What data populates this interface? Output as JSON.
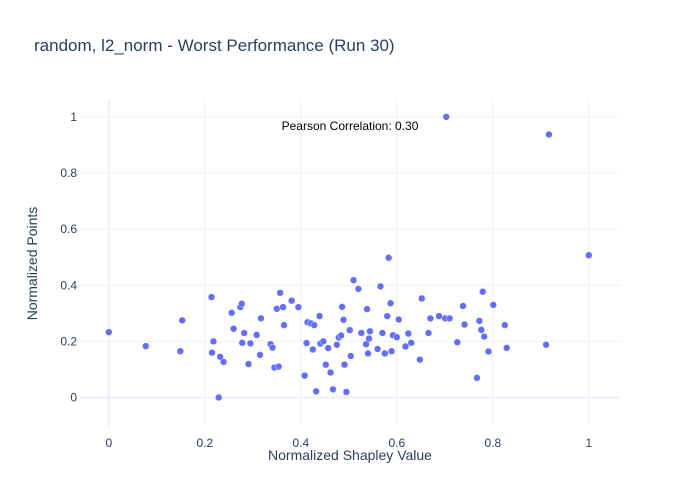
{
  "chart_data": {
    "type": "scatter",
    "title": "random, l2_norm - Worst Performance (Run 30)",
    "xlabel": "Normalized Shapley Value",
    "ylabel": "Normalized Points",
    "annotation": "Pearson Correlation: 0.30",
    "xlim": [
      -0.06,
      1.065
    ],
    "ylim": [
      -0.105,
      1.06
    ],
    "xticks": [
      0,
      0.2,
      0.4,
      0.6,
      0.8,
      1
    ],
    "xtick_labels": [
      "0",
      "0.2",
      "0.4",
      "0.6",
      "0.8",
      "1"
    ],
    "yticks": [
      0,
      0.2,
      0.4,
      0.6,
      0.8,
      1
    ],
    "ytick_labels": [
      "0",
      "0.2",
      "0.4",
      "0.6",
      "0.8",
      "1"
    ],
    "grid": true,
    "marker_color": "#636efa",
    "grid_color": "#ebf0f8",
    "zeroline_color": "#ebf0f8",
    "points": [
      [
        0.0,
        0.233
      ],
      [
        0.077,
        0.183
      ],
      [
        0.149,
        0.165
      ],
      [
        0.153,
        0.275
      ],
      [
        0.214,
        0.358
      ],
      [
        0.215,
        0.16
      ],
      [
        0.218,
        0.2
      ],
      [
        0.229,
        0.0
      ],
      [
        0.232,
        0.145
      ],
      [
        0.239,
        0.127
      ],
      [
        0.256,
        0.302
      ],
      [
        0.26,
        0.245
      ],
      [
        0.274,
        0.322
      ],
      [
        0.277,
        0.334
      ],
      [
        0.278,
        0.195
      ],
      [
        0.282,
        0.23
      ],
      [
        0.291,
        0.119
      ],
      [
        0.295,
        0.193
      ],
      [
        0.308,
        0.223
      ],
      [
        0.315,
        0.152
      ],
      [
        0.317,
        0.282
      ],
      [
        0.337,
        0.19
      ],
      [
        0.341,
        0.178
      ],
      [
        0.345,
        0.107
      ],
      [
        0.35,
        0.316
      ],
      [
        0.354,
        0.11
      ],
      [
        0.357,
        0.373
      ],
      [
        0.363,
        0.322
      ],
      [
        0.365,
        0.258
      ],
      [
        0.381,
        0.345
      ],
      [
        0.395,
        0.322
      ],
      [
        0.408,
        0.078
      ],
      [
        0.412,
        0.194
      ],
      [
        0.414,
        0.268
      ],
      [
        0.421,
        0.264
      ],
      [
        0.425,
        0.171
      ],
      [
        0.428,
        0.258
      ],
      [
        0.432,
        0.022
      ],
      [
        0.439,
        0.29
      ],
      [
        0.441,
        0.192
      ],
      [
        0.447,
        0.2
      ],
      [
        0.452,
        0.117
      ],
      [
        0.457,
        0.176
      ],
      [
        0.462,
        0.089
      ],
      [
        0.467,
        0.029
      ],
      [
        0.475,
        0.188
      ],
      [
        0.479,
        0.214
      ],
      [
        0.484,
        0.221
      ],
      [
        0.486,
        0.323
      ],
      [
        0.489,
        0.277
      ],
      [
        0.491,
        0.117
      ],
      [
        0.495,
        0.02
      ],
      [
        0.502,
        0.24
      ],
      [
        0.504,
        0.148
      ],
      [
        0.51,
        0.418
      ],
      [
        0.52,
        0.387
      ],
      [
        0.526,
        0.23
      ],
      [
        0.536,
        0.19
      ],
      [
        0.538,
        0.315
      ],
      [
        0.54,
        0.157
      ],
      [
        0.542,
        0.21
      ],
      [
        0.544,
        0.236
      ],
      [
        0.56,
        0.173
      ],
      [
        0.566,
        0.396
      ],
      [
        0.57,
        0.23
      ],
      [
        0.575,
        0.157
      ],
      [
        0.58,
        0.29
      ],
      [
        0.583,
        0.498
      ],
      [
        0.587,
        0.336
      ],
      [
        0.589,
        0.165
      ],
      [
        0.592,
        0.222
      ],
      [
        0.6,
        0.215
      ],
      [
        0.604,
        0.278
      ],
      [
        0.618,
        0.182
      ],
      [
        0.624,
        0.228
      ],
      [
        0.63,
        0.195
      ],
      [
        0.648,
        0.135
      ],
      [
        0.652,
        0.353
      ],
      [
        0.666,
        0.23
      ],
      [
        0.67,
        0.282
      ],
      [
        0.688,
        0.29
      ],
      [
        0.701,
        0.282
      ],
      [
        0.703,
        1.0
      ],
      [
        0.71,
        0.282
      ],
      [
        0.726,
        0.197
      ],
      [
        0.738,
        0.326
      ],
      [
        0.741,
        0.26
      ],
      [
        0.767,
        0.07
      ],
      [
        0.772,
        0.273
      ],
      [
        0.776,
        0.241
      ],
      [
        0.779,
        0.377
      ],
      [
        0.782,
        0.217
      ],
      [
        0.791,
        0.164
      ],
      [
        0.801,
        0.33
      ],
      [
        0.825,
        0.258
      ],
      [
        0.829,
        0.177
      ],
      [
        0.911,
        0.188
      ],
      [
        0.917,
        0.937
      ],
      [
        1.0,
        0.507
      ]
    ]
  }
}
